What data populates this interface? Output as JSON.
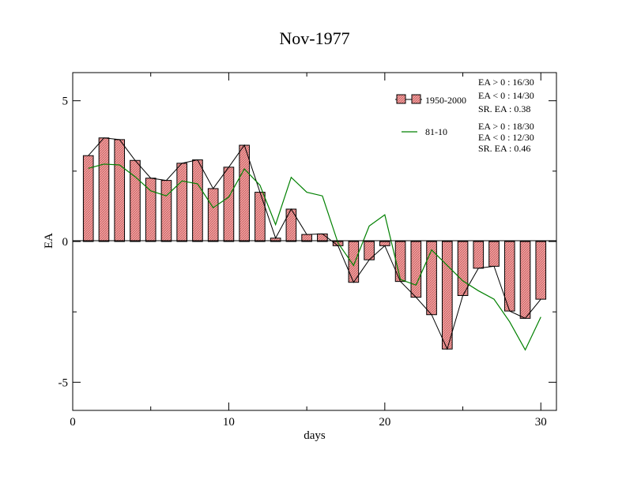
{
  "chart_data": {
    "type": "bar",
    "title": "Nov-1977",
    "xlabel": "days",
    "ylabel": "EA",
    "xlim": [
      0,
      31
    ],
    "ylim": [
      -6,
      6
    ],
    "x_ticks": [
      0,
      10,
      20,
      30
    ],
    "x_tick_labels": [
      "0",
      "10",
      "20",
      "30"
    ],
    "y_ticks": [
      -5,
      0,
      5
    ],
    "y_tick_labels": [
      "-5",
      "0",
      "5"
    ],
    "grid": false,
    "days": [
      1,
      2,
      3,
      4,
      5,
      6,
      7,
      8,
      9,
      10,
      11,
      12,
      13,
      14,
      15,
      16,
      17,
      18,
      19,
      20,
      21,
      22,
      23,
      24,
      25,
      26,
      27,
      28,
      29,
      30
    ],
    "series": [
      {
        "name": "1950-2000",
        "kind": "bar",
        "color": "#e89090",
        "values": [
          3.05,
          3.68,
          3.62,
          2.88,
          2.25,
          2.17,
          2.78,
          2.9,
          1.88,
          2.64,
          3.42,
          1.75,
          0.12,
          1.15,
          0.25,
          0.27,
          -0.15,
          -1.45,
          -0.65,
          -0.15,
          -1.42,
          -1.98,
          -2.6,
          -3.82,
          -1.92,
          -0.95,
          -0.88,
          -2.47,
          -2.73,
          -2.05
        ]
      },
      {
        "name": "81-10",
        "kind": "line",
        "color": "#008000",
        "values": [
          2.6,
          2.75,
          2.72,
          2.3,
          1.8,
          1.62,
          2.15,
          2.05,
          1.2,
          1.58,
          2.58,
          2.0,
          0.6,
          2.28,
          1.75,
          1.62,
          -0.05,
          -0.85,
          0.55,
          0.95,
          -1.35,
          -1.55,
          -0.3,
          -0.85,
          -1.4,
          -1.75,
          -2.05,
          -2.85,
          -3.85,
          -2.68
        ]
      }
    ],
    "legend": {
      "placement": "top-right",
      "entries": [
        {
          "label": "1950-2000",
          "stats": [
            "EA > 0 : 16/30",
            "EA < 0 : 14/30",
            "SR. EA :  0.38"
          ]
        },
        {
          "label": "81-10",
          "stats": [
            "EA > 0 : 18/30",
            "EA < 0 : 12/30",
            "SR. EA :  0.46"
          ]
        }
      ]
    }
  }
}
